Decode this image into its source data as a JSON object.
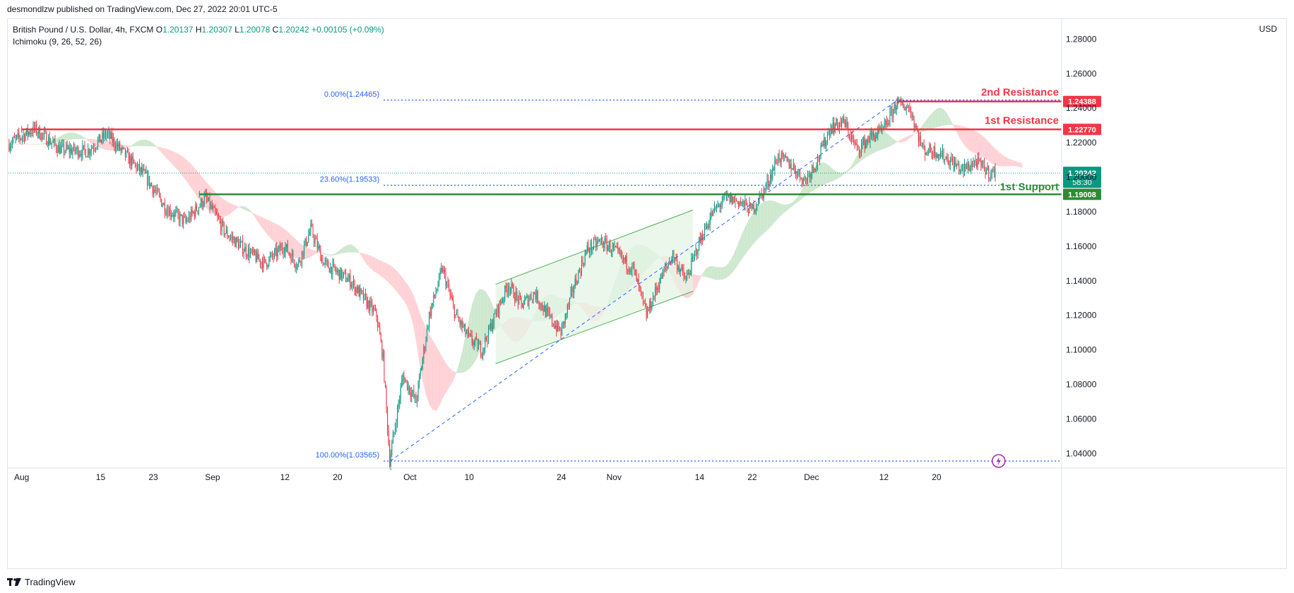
{
  "publish_line": "desmondlzw published on TradingView.com, Dec 27, 2022 20:01 UTC-5",
  "legend": {
    "symbol": "British Pound / U.S. Dollar, 4h, FXCM",
    "o_label": "O",
    "o_value": "1.20137",
    "h_label": "H",
    "h_value": "1.20307",
    "l_label": "L",
    "l_value": "1.20078",
    "c_label": "C",
    "c_value": "1.20242",
    "change": "+0.00105 (+0.09%)",
    "indicator": "Ichimoku (9, 26, 52, 26)"
  },
  "currency": "USD",
  "footer": {
    "brand": "TradingView"
  },
  "colors": {
    "resistance": "#f23645",
    "support": "#2e8b34",
    "up": "#089981",
    "down": "#f23645",
    "fib": "#2962ff",
    "cloud_bull": "#c8e6c9",
    "cloud_bear": "#ffcdd2",
    "channel": "#4caf50"
  },
  "chart_data": {
    "type": "candlestick",
    "title": "British Pound / U.S. Dollar, 4h, FXCM",
    "y_axis": {
      "range": [
        1.032,
        1.292
      ],
      "ticks": [
        "1.28000",
        "1.26000",
        "1.24000",
        "1.22000",
        "1.20000",
        "1.18000",
        "1.16000",
        "1.14000",
        "1.12000",
        "1.10000",
        "1.08000",
        "1.06000",
        "1.04000"
      ],
      "tick_values": [
        1.28,
        1.26,
        1.24,
        1.22,
        1.2,
        1.18,
        1.16,
        1.14,
        1.12,
        1.1,
        1.08,
        1.06,
        1.04
      ],
      "position": "right"
    },
    "x_axis": {
      "labels": [
        "Aug",
        "15",
        "23",
        "Sep",
        "12",
        "20",
        "Oct",
        "10",
        "24",
        "Nov",
        "14",
        "22",
        "Dec",
        "12",
        "20"
      ],
      "label_day_index": [
        0,
        14,
        22,
        31,
        42,
        50,
        61,
        70,
        84,
        92,
        105,
        113,
        122,
        133,
        141
      ]
    },
    "day_range": [
      0,
      160
    ],
    "price_path": [
      [
        0,
        1.219
      ],
      [
        4,
        1.228
      ],
      [
        8,
        1.216
      ],
      [
        12,
        1.215
      ],
      [
        15,
        1.225
      ],
      [
        18,
        1.212
      ],
      [
        21,
        1.2
      ],
      [
        24,
        1.182
      ],
      [
        27,
        1.174
      ],
      [
        30,
        1.188
      ],
      [
        33,
        1.168
      ],
      [
        36,
        1.158
      ],
      [
        39,
        1.15
      ],
      [
        42,
        1.16
      ],
      [
        44,
        1.149
      ],
      [
        46,
        1.17
      ],
      [
        48,
        1.15
      ],
      [
        50,
        1.145
      ],
      [
        52,
        1.14
      ],
      [
        54,
        1.13
      ],
      [
        56,
        1.12
      ],
      [
        57,
        1.095
      ],
      [
        58,
        1.036
      ],
      [
        60,
        1.085
      ],
      [
        62,
        1.07
      ],
      [
        64,
        1.12
      ],
      [
        66,
        1.147
      ],
      [
        68,
        1.12
      ],
      [
        70,
        1.107
      ],
      [
        72,
        1.1
      ],
      [
        74,
        1.12
      ],
      [
        76,
        1.138
      ],
      [
        78,
        1.126
      ],
      [
        80,
        1.133
      ],
      [
        82,
        1.12
      ],
      [
        84,
        1.11
      ],
      [
        86,
        1.137
      ],
      [
        88,
        1.158
      ],
      [
        90,
        1.163
      ],
      [
        92,
        1.158
      ],
      [
        94,
        1.15
      ],
      [
        95,
        1.147
      ],
      [
        97,
        1.12
      ],
      [
        99,
        1.14
      ],
      [
        101,
        1.155
      ],
      [
        103,
        1.14
      ],
      [
        105,
        1.162
      ],
      [
        107,
        1.179
      ],
      [
        109,
        1.188
      ],
      [
        111,
        1.186
      ],
      [
        113,
        1.181
      ],
      [
        115,
        1.193
      ],
      [
        117,
        1.212
      ],
      [
        119,
        1.207
      ],
      [
        121,
        1.198
      ],
      [
        123,
        1.21
      ],
      [
        125,
        1.229
      ],
      [
        127,
        1.232
      ],
      [
        129,
        1.216
      ],
      [
        131,
        1.223
      ],
      [
        133,
        1.227
      ],
      [
        135,
        1.243
      ],
      [
        137,
        1.24
      ],
      [
        139,
        1.216
      ],
      [
        141,
        1.215
      ],
      [
        143,
        1.21
      ],
      [
        145,
        1.204
      ],
      [
        147,
        1.209
      ],
      [
        149,
        1.203
      ],
      [
        150,
        1.2024
      ]
    ],
    "levels": [
      {
        "name": "2nd Resistance",
        "value": 1.24388,
        "label": "1.24388",
        "color": "#f23645",
        "start_day": 135
      },
      {
        "name": "1st Resistance",
        "value": 1.2277,
        "label": "1.22770",
        "color": "#f23645",
        "start_day": 2
      },
      {
        "name": "1st Support",
        "value": 1.19008,
        "label": "1.19008",
        "color": "#2e8b34",
        "start_day": 29
      }
    ],
    "current_price": {
      "value": 1.20242,
      "label": "1.20242",
      "countdown": "58:30"
    },
    "fibonacci": [
      {
        "label": "0.00%(1.24465)",
        "value": 1.24465
      },
      {
        "label": "23.60%(1.19533)",
        "value": 1.19533
      },
      {
        "label": "100.00%(1.03565)",
        "value": 1.03565
      }
    ],
    "fib_start_day": 57,
    "trendline": {
      "from": [
        58,
        1.0357
      ],
      "to": [
        135,
        1.2445
      ]
    },
    "channel": {
      "upper": [
        [
          74,
          1.138
        ],
        [
          104,
          1.181
        ]
      ],
      "lower": [
        [
          74,
          1.092
        ],
        [
          104,
          1.134
        ]
      ]
    },
    "annotations": [
      "2nd Resistance",
      "1st Resistance",
      "1st Support"
    ]
  }
}
